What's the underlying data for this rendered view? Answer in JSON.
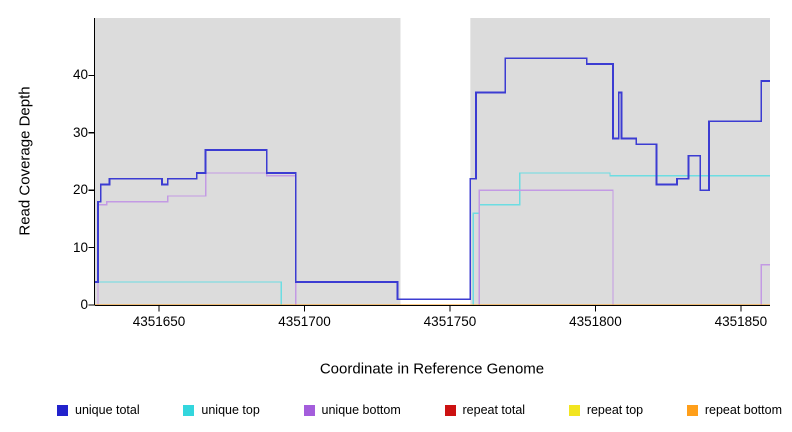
{
  "figure": {
    "ylabel": "Read Coverage Depth",
    "xlabel": "Coordinate in Reference Genome"
  },
  "colors": {
    "background": "#ffffff",
    "panel_shade": "#dcdcdc",
    "axis": "#000000",
    "text": "#000000"
  },
  "legend": {
    "items": [
      {
        "label": "unique total",
        "color": "#2222cc"
      },
      {
        "label": "unique top",
        "color": "#33d6dd"
      },
      {
        "label": "unique bottom",
        "color": "#a45ddc"
      },
      {
        "label": "repeat total",
        "color": "#cc1111"
      },
      {
        "label": "repeat top",
        "color": "#f2e520"
      },
      {
        "label": "repeat bottom",
        "color": "#ff9f1a"
      }
    ]
  },
  "chart_data": {
    "type": "line",
    "step": true,
    "title": "",
    "xlabel": "Coordinate in Reference Genome",
    "ylabel": "Read Coverage Depth",
    "xlim": [
      4351628,
      4351860
    ],
    "ylim": [
      0,
      50
    ],
    "x_ticks": [
      4351650,
      4351700,
      4351750,
      4351800,
      4351850
    ],
    "y_ticks": [
      0,
      10,
      20,
      30,
      40
    ],
    "background_shaded_x_regions": [
      [
        4351628,
        4351733
      ],
      [
        4351757,
        4351860
      ]
    ],
    "series": [
      {
        "name": "repeat total",
        "line_color": "#cc1111",
        "line_width": 1.2,
        "points": [
          [
            4351628,
            0
          ],
          [
            4351860,
            0
          ]
        ]
      },
      {
        "name": "repeat top",
        "line_color": "#f2e520",
        "line_width": 1.2,
        "points": [
          [
            4351628,
            0
          ],
          [
            4351860,
            0
          ]
        ]
      },
      {
        "name": "unique top",
        "line_color": "#6cdde2",
        "line_width": 1.3,
        "points": [
          [
            4351628,
            4
          ],
          [
            4351692,
            0
          ],
          [
            4351758,
            16
          ],
          [
            4351760,
            17.5
          ],
          [
            4351774,
            23
          ],
          [
            4351805,
            22.5
          ],
          [
            4351860,
            22.5
          ]
        ]
      },
      {
        "name": "unique bottom",
        "line_color": "#c39ae4",
        "line_width": 1.3,
        "points": [
          [
            4351628,
            0
          ],
          [
            4351629,
            17.5
          ],
          [
            4351632,
            18
          ],
          [
            4351653,
            19
          ],
          [
            4351666,
            23
          ],
          [
            4351687,
            22.5
          ],
          [
            4351697,
            0
          ],
          [
            4351760,
            20
          ],
          [
            4351806,
            0
          ],
          [
            4351857,
            7
          ],
          [
            4351860,
            7
          ]
        ]
      },
      {
        "name": "repeat bottom",
        "line_color": "#ff9f1a",
        "line_width": 1.3,
        "points": [
          [
            4351628,
            0
          ],
          [
            4351860,
            0
          ]
        ]
      },
      {
        "name": "unique total",
        "line_color": "#3c3cd2",
        "line_width": 1.8,
        "points": [
          [
            4351628,
            4
          ],
          [
            4351629,
            18
          ],
          [
            4351630,
            21
          ],
          [
            4351633,
            22
          ],
          [
            4351651,
            21
          ],
          [
            4351653,
            22
          ],
          [
            4351663,
            23
          ],
          [
            4351666,
            27
          ],
          [
            4351687,
            23
          ],
          [
            4351697,
            4
          ],
          [
            4351732,
            1
          ],
          [
            4351757,
            22
          ],
          [
            4351759,
            37
          ],
          [
            4351769,
            43
          ],
          [
            4351797,
            42
          ],
          [
            4351806,
            29
          ],
          [
            4351808,
            37
          ],
          [
            4351809,
            29
          ],
          [
            4351814,
            28
          ],
          [
            4351821,
            21
          ],
          [
            4351828,
            22
          ],
          [
            4351832,
            26
          ],
          [
            4351836,
            20
          ],
          [
            4351839,
            32
          ],
          [
            4351857,
            39
          ],
          [
            4351860,
            39
          ]
        ]
      }
    ]
  }
}
